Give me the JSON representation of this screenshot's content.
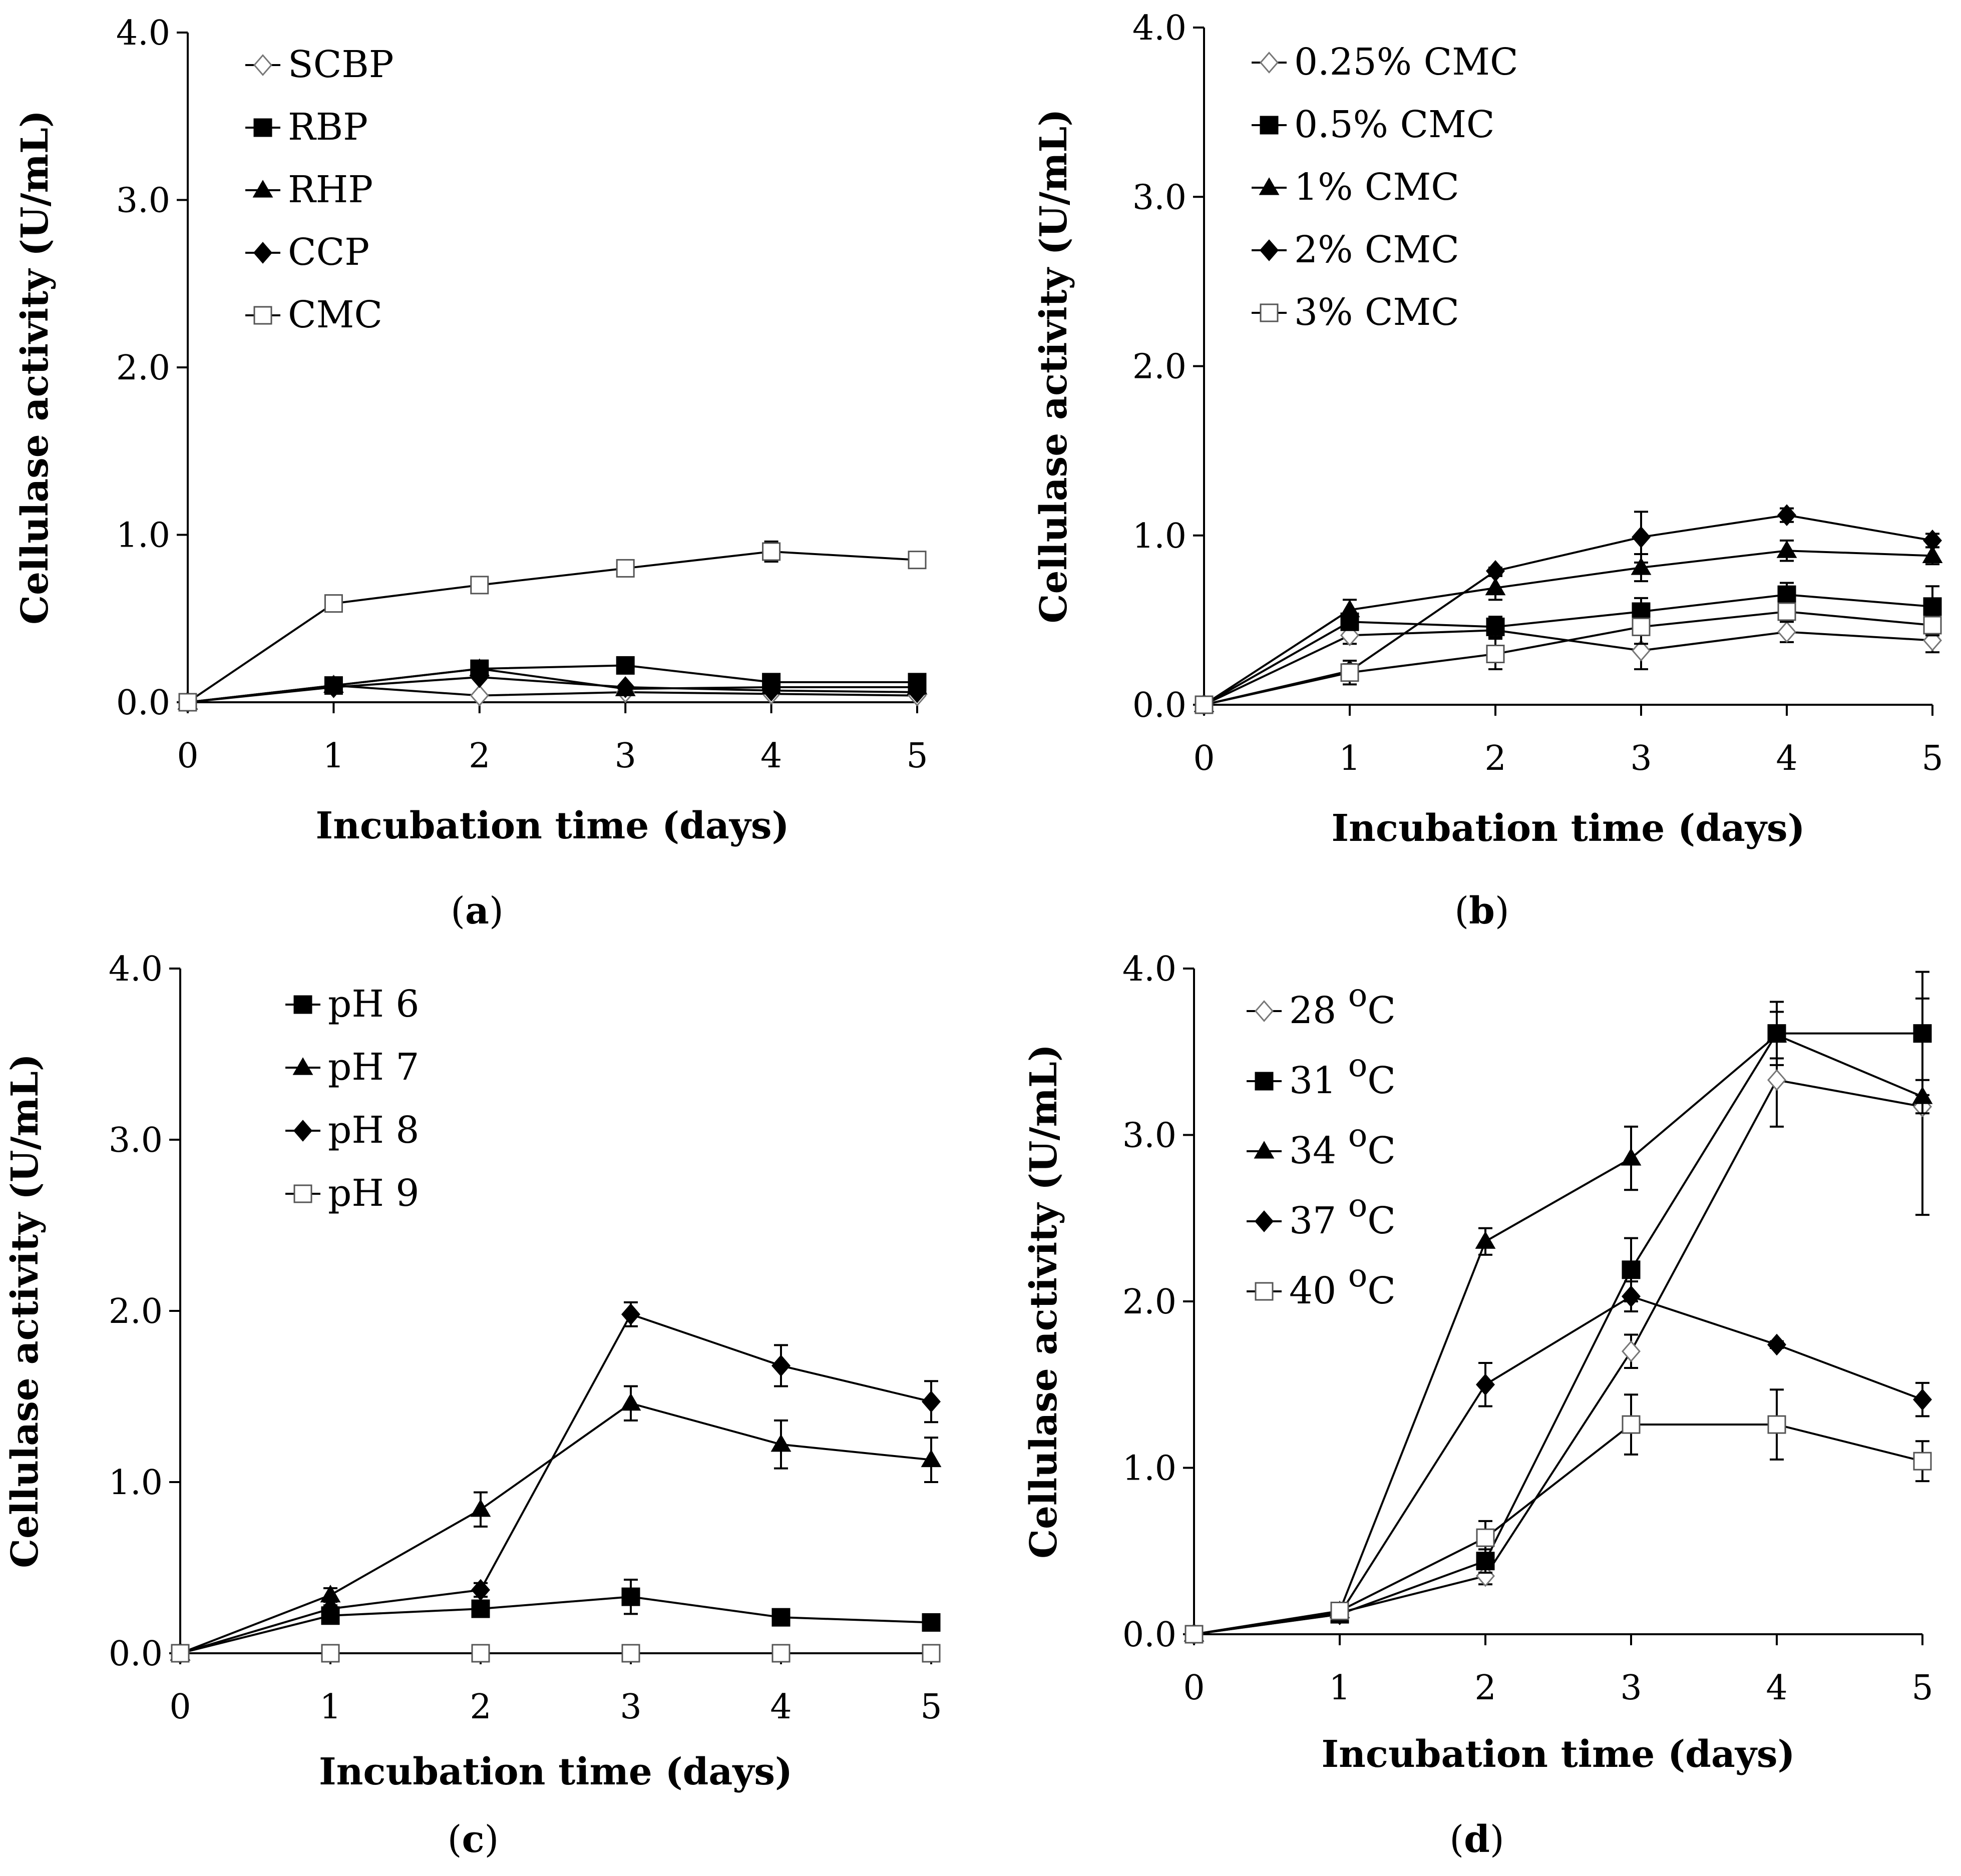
{
  "chart_data": [
    {
      "type": "line",
      "panel_label": "a",
      "xlabel": "Incubation time (days)",
      "ylabel": "Cellulase activity (U/mL)",
      "ylim": [
        0,
        4
      ],
      "xlim": [
        0,
        5
      ],
      "x": [
        0,
        1,
        2,
        3,
        4,
        5
      ],
      "yticks": [
        "0.0",
        "1.0",
        "2.0",
        "3.0",
        "4.0"
      ],
      "xticks": [
        "0",
        "1",
        "2",
        "3",
        "4",
        "5"
      ],
      "legend_position": "top-left",
      "series": [
        {
          "name": "SCBP",
          "marker": "diamond-open",
          "values": [
            0,
            0.1,
            0.04,
            0.06,
            0.05,
            0.04
          ],
          "errors": [
            0,
            0,
            0,
            0,
            0,
            0
          ]
        },
        {
          "name": "RBP",
          "marker": "square-filled",
          "values": [
            0,
            0.1,
            0.2,
            0.22,
            0.12,
            0.12
          ],
          "errors": [
            0,
            0,
            0,
            0,
            0,
            0
          ]
        },
        {
          "name": "RHP",
          "marker": "triangle-filled",
          "values": [
            0,
            0.1,
            0.2,
            0.08,
            0.09,
            0.09
          ],
          "errors": [
            0,
            0,
            0,
            0,
            0,
            0
          ]
        },
        {
          "name": "CCP",
          "marker": "diamond-filled",
          "values": [
            0,
            0.09,
            0.15,
            0.09,
            0.07,
            0.06
          ],
          "errors": [
            0,
            0,
            0,
            0,
            0,
            0
          ]
        },
        {
          "name": "CMC",
          "marker": "square-open",
          "values": [
            0,
            0.59,
            0.7,
            0.8,
            0.9,
            0.85
          ],
          "errors": [
            0,
            0,
            0,
            0,
            0.06,
            0
          ]
        }
      ]
    },
    {
      "type": "line",
      "panel_label": "b",
      "xlabel": "Incubation time (days)",
      "ylabel": "Cellulase activity (U/mL)",
      "ylim": [
        0,
        4
      ],
      "xlim": [
        0,
        5
      ],
      "x": [
        0,
        1,
        2,
        3,
        4,
        5
      ],
      "yticks": [
        "0.0",
        "1.0",
        "2.0",
        "3.0",
        "4.0"
      ],
      "xticks": [
        "0",
        "1",
        "2",
        "3",
        "4",
        "5"
      ],
      "legend_position": "top-left",
      "series": [
        {
          "name": "0.25% CMC",
          "marker": "diamond-open",
          "values": [
            0,
            0.41,
            0.44,
            0.32,
            0.43,
            0.38
          ],
          "errors": [
            0,
            0.05,
            0.04,
            0.11,
            0.06,
            0.07
          ]
        },
        {
          "name": "0.5% CMC",
          "marker": "square-filled",
          "values": [
            0,
            0.49,
            0.46,
            0.55,
            0.65,
            0.58
          ],
          "errors": [
            0,
            0.04,
            0.06,
            0.08,
            0.07,
            0.12
          ]
        },
        {
          "name": "1% CMC",
          "marker": "triangle-filled",
          "values": [
            0,
            0.56,
            0.69,
            0.81,
            0.91,
            0.88
          ],
          "errors": [
            0,
            0.06,
            0.07,
            0.08,
            0.06,
            0.05
          ]
        },
        {
          "name": "2% CMC",
          "marker": "diamond-filled",
          "values": [
            0,
            0.2,
            0.79,
            0.99,
            1.12,
            0.97
          ],
          "errors": [
            0,
            0.04,
            0.02,
            0.15,
            0.04,
            0.04
          ]
        },
        {
          "name": "3% CMC",
          "marker": "square-open",
          "values": [
            0,
            0.19,
            0.3,
            0.46,
            0.55,
            0.47
          ],
          "errors": [
            0,
            0.07,
            0.09,
            0.1,
            0.06,
            0.06
          ]
        }
      ]
    },
    {
      "type": "line",
      "panel_label": "c",
      "xlabel": "Incubation time (days)",
      "ylabel": "Cellulase activity (U/mL)",
      "ylim": [
        0,
        4
      ],
      "xlim": [
        0,
        5
      ],
      "x": [
        0,
        1,
        2,
        3,
        4,
        5
      ],
      "yticks": [
        "0.0",
        "1.0",
        "2.0",
        "3.0",
        "4.0"
      ],
      "xticks": [
        "0",
        "1",
        "2",
        "3",
        "4",
        "5"
      ],
      "legend_position": "top-left",
      "series": [
        {
          "name": "pH 6",
          "marker": "square-filled",
          "values": [
            0,
            0.22,
            0.26,
            0.33,
            0.21,
            0.18
          ],
          "errors": [
            0,
            0.03,
            0.04,
            0.1,
            0.03,
            0.02
          ]
        },
        {
          "name": "pH 7",
          "marker": "triangle-filled",
          "values": [
            0,
            0.34,
            0.84,
            1.46,
            1.22,
            1.13
          ],
          "errors": [
            0,
            0.04,
            0.1,
            0.1,
            0.14,
            0.13
          ]
        },
        {
          "name": "pH 8",
          "marker": "diamond-filled",
          "values": [
            0,
            0.26,
            0.37,
            1.98,
            1.68,
            1.47
          ],
          "errors": [
            0,
            0.02,
            0.04,
            0.07,
            0.12,
            0.12
          ]
        },
        {
          "name": "pH 9",
          "marker": "square-open",
          "values": [
            0,
            0.0,
            0.0,
            0.0,
            0.0,
            0.0
          ],
          "errors": [
            0,
            0,
            0,
            0,
            0,
            0
          ]
        }
      ]
    },
    {
      "type": "line",
      "panel_label": "d",
      "xlabel": "Incubation time (days)",
      "ylabel": "Cellulase activity (U/mL)",
      "ylim": [
        0,
        4
      ],
      "xlim": [
        0,
        5
      ],
      "x": [
        0,
        1,
        2,
        3,
        4,
        5
      ],
      "yticks": [
        "0.0",
        "1.0",
        "2.0",
        "3.0",
        "4.0"
      ],
      "xticks": [
        "0",
        "1",
        "2",
        "3",
        "4",
        "5"
      ],
      "legend_position": "top-left",
      "series": [
        {
          "name": "28 oC",
          "name_number": "28",
          "name_super": "o",
          "name_unit": "C",
          "marker": "diamond-open",
          "values": [
            0,
            0.13,
            0.35,
            1.7,
            3.33,
            3.17
          ],
          "errors": [
            0,
            0.03,
            0.05,
            0.1,
            0.28,
            0.65
          ]
        },
        {
          "name": "31 oC",
          "name_number": "31",
          "name_super": "o",
          "name_unit": "C",
          "marker": "square-filled",
          "values": [
            0,
            0.12,
            0.44,
            2.19,
            3.61,
            3.61
          ],
          "errors": [
            0,
            0.03,
            0.07,
            0.19,
            0.19,
            0.37
          ]
        },
        {
          "name": "34 oC",
          "name_number": "34",
          "name_super": "o",
          "name_unit": "C",
          "marker": "triangle-filled",
          "values": [
            0,
            0.14,
            2.36,
            2.86,
            3.6,
            3.23
          ],
          "errors": [
            0,
            0.03,
            0.08,
            0.19,
            0.14,
            0.1
          ]
        },
        {
          "name": "37 oC",
          "name_number": "37",
          "name_super": "o",
          "name_unit": "C",
          "marker": "diamond-filled",
          "values": [
            0,
            0.12,
            1.5,
            2.03,
            1.74,
            1.41
          ],
          "errors": [
            0,
            0.03,
            0.13,
            0.09,
            0.02,
            0.1
          ]
        },
        {
          "name": "40 oC",
          "name_number": "40",
          "name_super": "o",
          "name_unit": "C",
          "marker": "square-open",
          "values": [
            0,
            0.14,
            0.58,
            1.26,
            1.26,
            1.04
          ],
          "errors": [
            0,
            0.04,
            0.1,
            0.18,
            0.21,
            0.12
          ]
        }
      ]
    }
  ]
}
